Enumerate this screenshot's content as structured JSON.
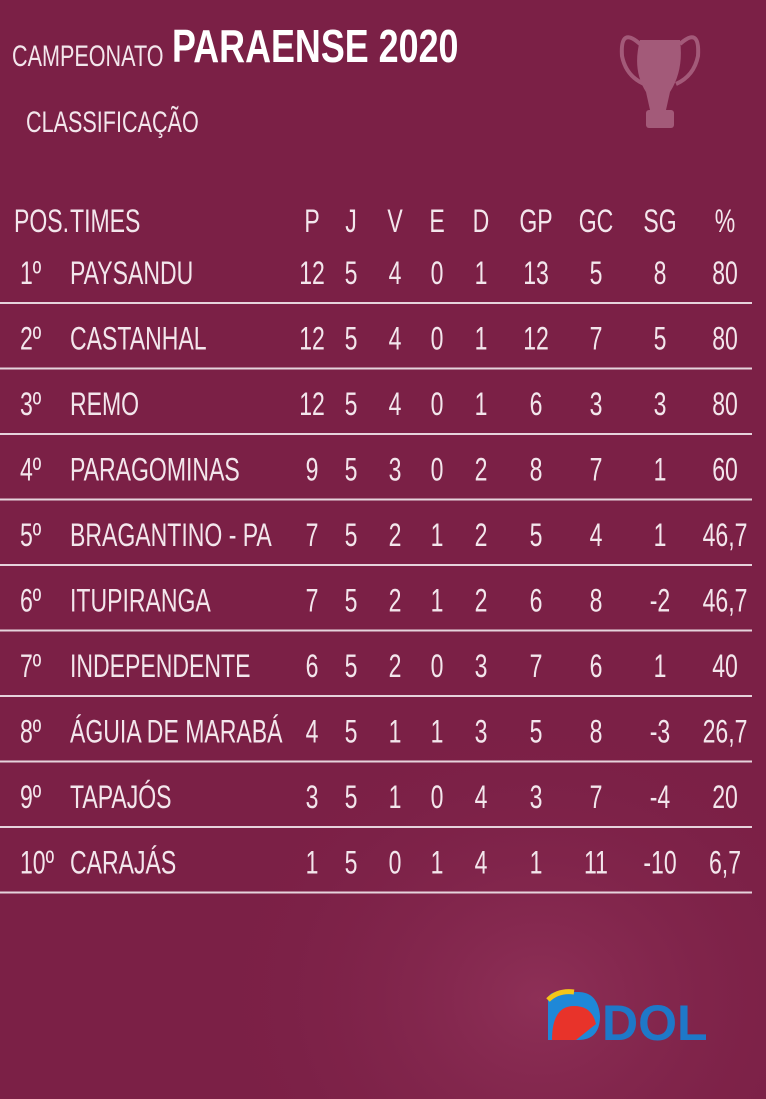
{
  "header": {
    "prefix": "CAMPEONATO",
    "title": "PARAENSE 2020",
    "subtitle": "CLASSIFICAÇÃO"
  },
  "table": {
    "columns": [
      "POS.",
      "TIMES",
      "P",
      "J",
      "V",
      "E",
      "D",
      "GP",
      "GC",
      "SG",
      "%"
    ],
    "rows": [
      [
        "1º",
        "PAYSANDU",
        "12",
        "5",
        "4",
        "0",
        "1",
        "13",
        "5",
        "8",
        "80"
      ],
      [
        "2º",
        "CASTANHAL",
        "12",
        "5",
        "4",
        "0",
        "1",
        "12",
        "7",
        "5",
        "80"
      ],
      [
        "3º",
        "REMO",
        "12",
        "5",
        "4",
        "0",
        "1",
        "6",
        "3",
        "3",
        "80"
      ],
      [
        "4º",
        "PARAGOMINAS",
        "9",
        "5",
        "3",
        "0",
        "2",
        "8",
        "7",
        "1",
        "60"
      ],
      [
        "5º",
        "BRAGANTINO - PA",
        "7",
        "5",
        "2",
        "1",
        "2",
        "5",
        "4",
        "1",
        "46,7"
      ],
      [
        "6º",
        "ITUPIRANGA",
        "7",
        "5",
        "2",
        "1",
        "2",
        "6",
        "8",
        "-2",
        "46,7"
      ],
      [
        "7º",
        "INDEPENDENTE",
        "6",
        "5",
        "2",
        "0",
        "3",
        "7",
        "6",
        "1",
        "40"
      ],
      [
        "8º",
        "ÁGUIA DE MARABÁ",
        "4",
        "5",
        "1",
        "1",
        "3",
        "5",
        "8",
        "-3",
        "26,7"
      ],
      [
        "9º",
        "TAPAJÓS",
        "3",
        "5",
        "1",
        "0",
        "4",
        "3",
        "7",
        "-4",
        "20"
      ],
      [
        "10º",
        "CARAJÁS",
        "1",
        "5",
        "0",
        "1",
        "4",
        "1",
        "11",
        "-10",
        "6,7"
      ]
    ]
  },
  "logo": "DOL"
}
